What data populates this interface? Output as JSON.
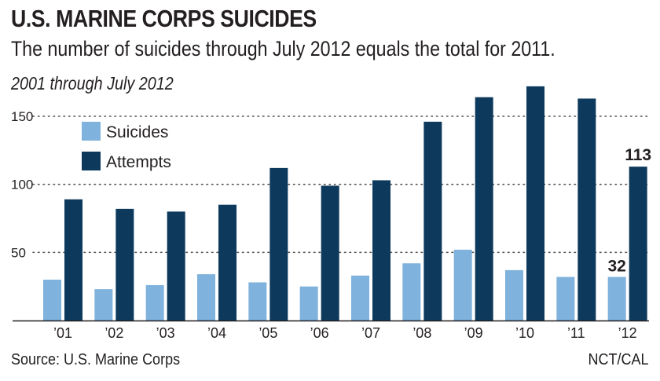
{
  "header": {
    "title": "U.S. MARINE CORPS SUICIDES",
    "subtitle": "The number of suicides through July 2012 equals the total for 2011.",
    "range_label": "2001 through July 2012"
  },
  "footer": {
    "source": "Source: U.S. Marine Corps",
    "credit": "NCT/CAL"
  },
  "colors": {
    "suicides": "#7fb2dc",
    "attempts": "#0d3a5c",
    "grid": "#555555",
    "axis": "#231f20"
  },
  "chart_data": {
    "type": "bar",
    "title": "U.S. MARINE CORPS SUICIDES",
    "subtitle": "The number of suicides through July 2012 equals the total for 2011.",
    "categories": [
      "’01",
      "’02",
      "’03",
      "’04",
      "’05",
      "’06",
      "’07",
      "’08",
      "’09",
      "’10",
      "’11",
      "’12"
    ],
    "series": [
      {
        "name": "Suicides",
        "values": [
          30,
          23,
          26,
          34,
          28,
          25,
          33,
          42,
          52,
          37,
          32,
          32
        ]
      },
      {
        "name": "Attempts",
        "values": [
          89,
          82,
          80,
          85,
          112,
          99,
          103,
          146,
          164,
          172,
          163,
          113
        ]
      }
    ],
    "yticks": [
      50,
      100,
      150
    ],
    "ylim": [
      0,
      175
    ],
    "grid": true,
    "legend_position": "top-left",
    "annotations": [
      {
        "category": "’12",
        "series": "Suicides",
        "text": "32"
      },
      {
        "category": "’12",
        "series": "Attempts",
        "text": "113"
      }
    ]
  }
}
